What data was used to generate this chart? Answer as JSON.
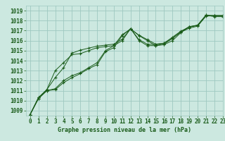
{
  "xlabel": "Graphe pression niveau de la mer (hPa)",
  "xlim": [
    -0.5,
    23
  ],
  "ylim": [
    1008.5,
    1019.5
  ],
  "yticks": [
    1009,
    1010,
    1011,
    1012,
    1013,
    1014,
    1015,
    1016,
    1017,
    1018,
    1019
  ],
  "xticks": [
    0,
    1,
    2,
    3,
    4,
    5,
    6,
    7,
    8,
    9,
    10,
    11,
    12,
    13,
    14,
    15,
    16,
    17,
    18,
    19,
    20,
    21,
    22,
    23
  ],
  "background_color": "#cce8e0",
  "grid_color": "#9ec8c0",
  "line_color": "#1a5c1a",
  "lines": [
    [
      1008.6,
      1010.2,
      1011.0,
      1011.1,
      1011.8,
      1012.3,
      1012.7,
      1013.2,
      1013.6,
      1014.9,
      1015.3,
      1016.5,
      1017.2,
      1016.5,
      1016.0,
      1015.5,
      1015.6,
      1016.0,
      1016.8,
      1017.4,
      1017.5,
      1018.5,
      1018.5,
      1018.5
    ],
    [
      1008.6,
      1010.2,
      1011.0,
      1011.2,
      1012.0,
      1012.5,
      1012.8,
      1013.3,
      1013.8,
      1015.0,
      1015.5,
      1016.6,
      1017.15,
      1016.55,
      1016.1,
      1015.65,
      1015.75,
      1016.2,
      1016.9,
      1017.4,
      1017.55,
      1018.55,
      1018.4,
      1018.4
    ],
    [
      1008.6,
      1010.3,
      1011.1,
      1013.0,
      1013.8,
      1014.6,
      1014.7,
      1015.0,
      1015.3,
      1015.4,
      1015.5,
      1016.0,
      1017.2,
      1016.0,
      1015.5,
      1015.5,
      1015.65,
      1016.25,
      1016.85,
      1017.25,
      1017.45,
      1018.45,
      1018.5,
      1018.5
    ],
    [
      1008.6,
      1010.3,
      1011.1,
      1012.3,
      1013.3,
      1014.75,
      1015.05,
      1015.25,
      1015.45,
      1015.55,
      1015.65,
      1016.15,
      1017.2,
      1016.1,
      1015.65,
      1015.6,
      1015.75,
      1016.35,
      1016.95,
      1017.35,
      1017.55,
      1018.55,
      1018.5,
      1018.5
    ]
  ]
}
